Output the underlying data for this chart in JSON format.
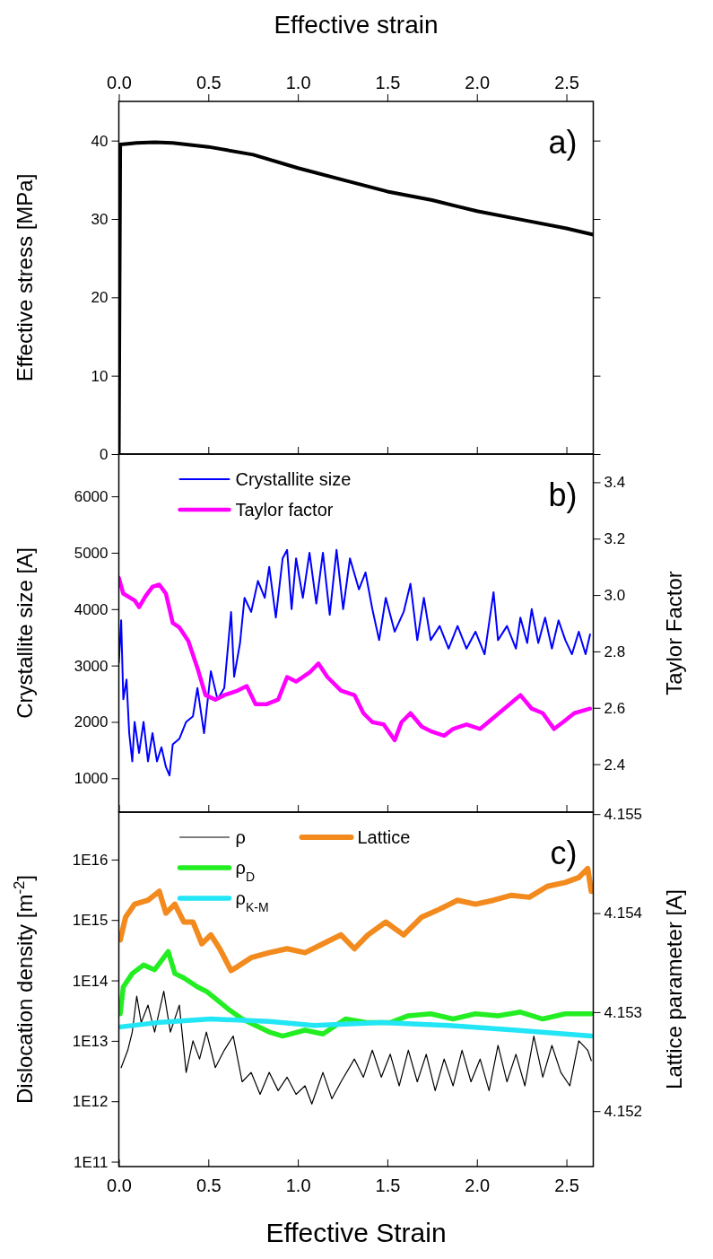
{
  "chart_data": [
    {
      "type": "line",
      "x2label": "Effective strain",
      "ylabel": "Effective stress [MPa]",
      "annotations": [
        "a)"
      ],
      "tick_labels": "y",
      "xlim": [
        0,
        2.65
      ],
      "xticks": [
        0,
        0.5,
        1,
        1.5,
        2,
        2.5
      ],
      "x2lim": [
        0,
        2.65
      ],
      "x2ticks": [
        {
          "value": 0,
          "label": "0.0"
        },
        {
          "value": 0.5,
          "label": "0.5"
        },
        {
          "value": 1,
          "label": "1.0"
        },
        {
          "value": 1.5,
          "label": "1.5"
        },
        {
          "value": 2,
          "label": "2.0"
        },
        {
          "value": 2.5,
          "label": "2.5"
        }
      ],
      "ylim": [
        0,
        45
      ],
      "yticks": [
        0,
        10,
        20,
        30,
        40
      ],
      "legend": false,
      "series": [
        {
          "color": "#000000",
          "x": [
            0,
            0.004,
            0.008,
            0.05,
            0.1,
            0.2,
            0.3,
            0.5,
            0.75,
            1.0,
            1.25,
            1.5,
            1.75,
            2.0,
            2.25,
            2.5,
            2.65
          ],
          "values": [
            0,
            20,
            39.5,
            39.6,
            39.7,
            39.8,
            39.7,
            39.2,
            38.2,
            36.5,
            35,
            33.5,
            32.4,
            31.0,
            29.9,
            28.8,
            28.0
          ]
        }
      ]
    },
    {
      "type": "line",
      "ylabel": "Crystallite size [A]",
      "y2label": "Taylor Factor",
      "annotations": [
        "b)"
      ],
      "tick_labels": "y",
      "legend": "top left",
      "xlim": [
        0,
        2.65
      ],
      "xticks": [
        0,
        0.5,
        1,
        1.5,
        2,
        2.5
      ],
      "ylim": [
        400,
        6750
      ],
      "yticks": [
        1000,
        2000,
        3000,
        4000,
        5000,
        6000
      ],
      "y2lim": [
        2.23,
        3.5
      ],
      "y2ticks": [
        2.4,
        2.6,
        2.8,
        {
          "value": 3,
          "label": "3.0"
        },
        3.2,
        3.4
      ],
      "series": [
        {
          "name": "Crystallite size",
          "color": "#0000ff",
          "x": [
            0,
            0.013,
            0.025,
            0.043,
            0.058,
            0.075,
            0.088,
            0.113,
            0.138,
            0.163,
            0.188,
            0.213,
            0.238,
            0.263,
            0.283,
            0.301,
            0.338,
            0.376,
            0.414,
            0.439,
            0.476,
            0.514,
            0.551,
            0.589,
            0.627,
            0.644,
            0.677,
            0.702,
            0.739,
            0.777,
            0.815,
            0.84,
            0.877,
            0.915,
            0.94,
            0.965,
            0.99,
            1.028,
            1.065,
            1.103,
            1.14,
            1.178,
            1.216,
            1.253,
            1.291,
            1.341,
            1.378,
            1.416,
            1.454,
            1.491,
            1.541,
            1.591,
            1.629,
            1.667,
            1.704,
            1.742,
            1.792,
            1.842,
            1.892,
            1.942,
            1.992,
            2.043,
            2.093,
            2.118,
            2.168,
            2.218,
            2.243,
            2.281,
            2.306,
            2.343,
            2.381,
            2.419,
            2.456,
            2.494,
            2.531,
            2.569,
            2.607,
            2.632
          ],
          "values": [
            3050,
            3800,
            2400,
            2750,
            1800,
            1300,
            2000,
            1450,
            2000,
            1300,
            1800,
            1300,
            1550,
            1200,
            1050,
            1600,
            1700,
            2000,
            2100,
            2600,
            1800,
            2900,
            2400,
            2600,
            3950,
            2800,
            3400,
            4200,
            3950,
            4500,
            4200,
            4750,
            3850,
            4900,
            5050,
            4000,
            4900,
            4200,
            5000,
            4100,
            5000,
            3900,
            5050,
            4000,
            4900,
            4350,
            4650,
            4000,
            3450,
            4200,
            3600,
            3950,
            4450,
            3450,
            4200,
            3450,
            3700,
            3300,
            3700,
            3300,
            3600,
            3200,
            4300,
            3450,
            3700,
            3300,
            3850,
            3400,
            4000,
            3400,
            3850,
            3300,
            3800,
            3450,
            3200,
            3600,
            3200,
            3550
          ]
        },
        {
          "name": "Taylor factor",
          "color": "#ff00ff",
          "axis": "y2",
          "x": [
            0,
            0.025,
            0.088,
            0.113,
            0.15,
            0.188,
            0.226,
            0.263,
            0.301,
            0.338,
            0.388,
            0.439,
            0.484,
            0.539,
            0.589,
            0.664,
            0.714,
            0.764,
            0.827,
            0.89,
            0.94,
            0.99,
            1.065,
            1.115,
            1.165,
            1.241,
            1.316,
            1.366,
            1.416,
            1.479,
            1.541,
            1.579,
            1.629,
            1.692,
            1.742,
            1.817,
            1.867,
            1.942,
            2.018,
            2.093,
            2.168,
            2.243,
            2.306,
            2.368,
            2.431,
            2.481,
            2.544,
            2.632
          ],
          "values": [
            3.061,
            3.005,
            2.981,
            2.957,
            2.997,
            3.029,
            3.037,
            3.005,
            2.901,
            2.885,
            2.837,
            2.741,
            2.645,
            2.629,
            2.645,
            2.661,
            2.677,
            2.613,
            2.613,
            2.629,
            2.709,
            2.693,
            2.725,
            2.757,
            2.709,
            2.661,
            2.645,
            2.581,
            2.549,
            2.541,
            2.485,
            2.549,
            2.581,
            2.533,
            2.517,
            2.501,
            2.525,
            2.541,
            2.525,
            2.565,
            2.605,
            2.645,
            2.597,
            2.581,
            2.525,
            2.549,
            2.581,
            2.597
          ]
        }
      ]
    },
    {
      "type": "line",
      "xlabel": "Effective Strain",
      "ylabel": "Dislocation density [m$^{-2}$]",
      "y2label": "Lattice parameter [A]",
      "annotations": [
        "c)"
      ],
      "legend": "top left",
      "log": "y",
      "xlim": [
        0,
        2.65
      ],
      "xticks": [
        {
          "value": 0,
          "label": "0.0"
        },
        {
          "value": 0.5,
          "label": "0.5"
        },
        {
          "value": 1,
          "label": "1.0"
        },
        {
          "value": 1.5,
          "label": "1.5"
        },
        {
          "value": 2,
          "label": "2.0"
        },
        {
          "value": 2.5,
          "label": "2.5"
        }
      ],
      "ylim": [
        83000000000.0,
        6.1e+16
      ],
      "yticks": [
        {
          "value": 100000000000.0,
          "label": "1E11"
        },
        {
          "value": 1000000000000.0,
          "label": "1E12"
        },
        {
          "value": 10000000000000.0,
          "label": "1E13"
        },
        {
          "value": 100000000000000.0,
          "label": "1E14"
        },
        {
          "value": 1000000000000000.0,
          "label": "1E15"
        },
        {
          "value": 1e+16,
          "label": "1E16"
        }
      ],
      "y2lim": [
        4.15144,
        4.15502
      ],
      "y2ticks": [
        4.152,
        4.153,
        4.154,
        4.155
      ],
      "series": [
        {
          "name": "ρ",
          "color": "#000000",
          "x": [
            0.013,
            0.05,
            0.075,
            0.1,
            0.125,
            0.163,
            0.2,
            0.251,
            0.288,
            0.338,
            0.376,
            0.414,
            0.451,
            0.489,
            0.539,
            0.589,
            0.639,
            0.689,
            0.739,
            0.789,
            0.84,
            0.89,
            0.94,
            0.99,
            1.04,
            1.078,
            1.14,
            1.19,
            1.241,
            1.316,
            1.366,
            1.416,
            1.466,
            1.516,
            1.566,
            1.617,
            1.667,
            1.717,
            1.767,
            1.817,
            1.867,
            1.917,
            1.967,
            2.018,
            2.068,
            2.118,
            2.168,
            2.218,
            2.268,
            2.318,
            2.368,
            2.419,
            2.469,
            2.519,
            2.569,
            2.619,
            2.639
          ],
          "values": [
            3600000000000.0,
            7000000000000.0,
            14000000000000.0,
            55000000000000.0,
            20000000000000.0,
            39000000000000.0,
            14000000000000.0,
            66000000000000.0,
            14000000000000.0,
            39000000000000.0,
            3000000000000.0,
            10000000000000.0,
            5000000000000.0,
            14000000000000.0,
            3600000000000.0,
            7000000000000.0,
            12000000000000.0,
            2100000000000.0,
            3000000000000.0,
            1300000000000.0,
            3000000000000.0,
            1500000000000.0,
            2500000000000.0,
            1300000000000.0,
            1800000000000.0,
            900000000000.0,
            3000000000000.0,
            1100000000000.0,
            2100000000000.0,
            5000000000000.0,
            2500000000000.0,
            7000000000000.0,
            2500000000000.0,
            6000000000000.0,
            1800000000000.0,
            7000000000000.0,
            2100000000000.0,
            6000000000000.0,
            1500000000000.0,
            5000000000000.0,
            1800000000000.0,
            7000000000000.0,
            2100000000000.0,
            5000000000000.0,
            1500000000000.0,
            8400000000000.0,
            2100000000000.0,
            6000000000000.0,
            1800000000000.0,
            12000000000000.0,
            2500000000000.0,
            8400000000000.0,
            3000000000000.0,
            1800000000000.0,
            10000000000000.0,
            7000000000000.0,
            4700000000000.0
          ]
        },
        {
          "name": "ρ$_{D}$",
          "color": "#22ee22",
          "x": [
            0.008,
            0.025,
            0.075,
            0.138,
            0.2,
            0.276,
            0.313,
            0.363,
            0.439,
            0.489,
            0.551,
            0.614,
            0.689,
            0.764,
            0.84,
            0.915,
            1.04,
            1.14,
            1.266,
            1.391,
            1.516,
            1.617,
            1.742,
            1.867,
            1.992,
            2.118,
            2.243,
            2.368,
            2.494,
            2.639
          ],
          "values": [
            28000000000000.0,
            78000000000000.0,
            130000000000000.0,
            180000000000000.0,
            150000000000000.0,
            300000000000000.0,
            130000000000000.0,
            110000000000000.0,
            78000000000000.0,
            66000000000000.0,
            47000000000000.0,
            33000000000000.0,
            23000000000000.0,
            18000000000000.0,
            14000000000000.0,
            12000000000000.0,
            15000000000000.0,
            13000000000000.0,
            23000000000000.0,
            20000000000000.0,
            20000000000000.0,
            26000000000000.0,
            28000000000000.0,
            23000000000000.0,
            28000000000000.0,
            26000000000000.0,
            30000000000000.0,
            23000000000000.0,
            28000000000000.0,
            28000000000000.0
          ]
        },
        {
          "name": "ρ$_{K-M}$",
          "color": "#22e5f5",
          "x": [
            0.008,
            0.213,
            0.514,
            0.84,
            1.09,
            1.466,
            1.842,
            2.218,
            2.639
          ],
          "values": [
            17000000000000.0,
            20000000000000.0,
            23000000000000.0,
            21000000000000.0,
            18000000000000.0,
            20000000000000.0,
            18000000000000.0,
            15000000000000.0,
            12000000000000.0
          ]
        },
        {
          "name": "Lattice",
          "color": "#f28a1e",
          "axis": "y2",
          "x": [
            0.008,
            0.038,
            0.088,
            0.163,
            0.226,
            0.263,
            0.313,
            0.363,
            0.414,
            0.464,
            0.514,
            0.564,
            0.627,
            0.664,
            0.739,
            0.84,
            0.94,
            1.04,
            1.14,
            1.241,
            1.316,
            1.391,
            1.491,
            1.591,
            1.692,
            1.792,
            1.892,
            1.992,
            2.093,
            2.193,
            2.293,
            2.393,
            2.494,
            2.569,
            2.619,
            2.639
          ],
          "values": [
            4.15373,
            4.15396,
            4.15409,
            4.15413,
            4.15422,
            4.154,
            4.15409,
            4.15391,
            4.15391,
            4.15369,
            4.15378,
            4.15364,
            4.15342,
            4.15346,
            4.15355,
            4.1536,
            4.15364,
            4.1536,
            4.15369,
            4.15378,
            4.15364,
            4.15378,
            4.15391,
            4.15378,
            4.15396,
            4.15404,
            4.15413,
            4.15409,
            4.15413,
            4.15418,
            4.15416,
            4.15427,
            4.15431,
            4.15436,
            4.15445,
            4.15422
          ]
        }
      ]
    }
  ]
}
